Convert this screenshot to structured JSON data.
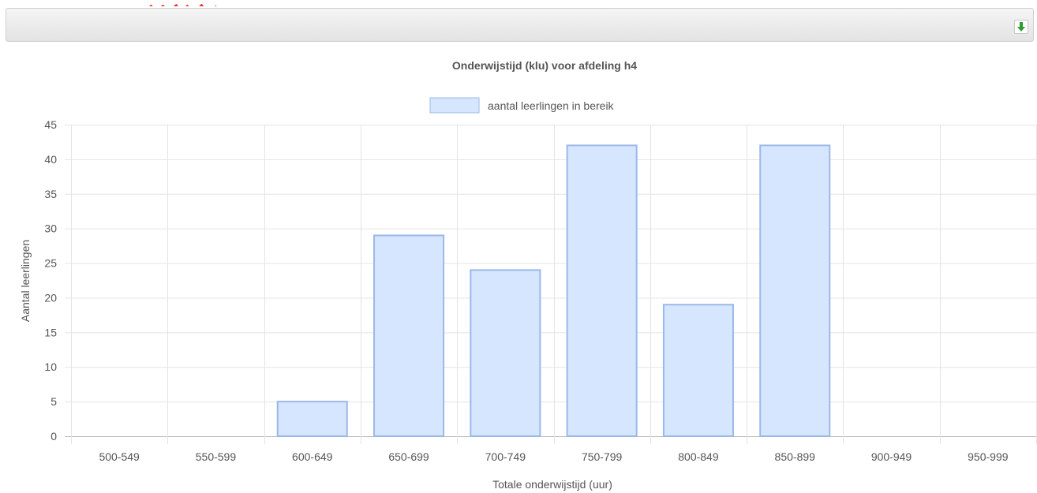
{
  "toolbar": {
    "download_icon": "download-arrow-icon",
    "icon_color": "#2e9e2e"
  },
  "chart_data": {
    "type": "bar",
    "title": "Onderwijstijd (klu) voor afdeling h4",
    "xlabel": "Totale onderwijstijd (uur)",
    "ylabel": "Aantal leerlingen",
    "categories": [
      "500-549",
      "550-599",
      "600-649",
      "650-699",
      "700-749",
      "750-799",
      "800-849",
      "850-899",
      "900-949",
      "950-999"
    ],
    "series": [
      {
        "name": "aantal leerlingen in bereik",
        "values": [
          0,
          0,
          5,
          29,
          24,
          42,
          19,
          42,
          0,
          0
        ]
      }
    ],
    "ylim": [
      0,
      45
    ],
    "yticks": [
      0,
      5,
      10,
      15,
      20,
      25,
      30,
      35,
      40,
      45
    ],
    "grid": true,
    "legend_position": "top",
    "colors": {
      "bar_fill": "#d6e6ff",
      "bar_border": "#9bb8e8",
      "grid": "#e4e4e4",
      "text": "#555555"
    }
  }
}
